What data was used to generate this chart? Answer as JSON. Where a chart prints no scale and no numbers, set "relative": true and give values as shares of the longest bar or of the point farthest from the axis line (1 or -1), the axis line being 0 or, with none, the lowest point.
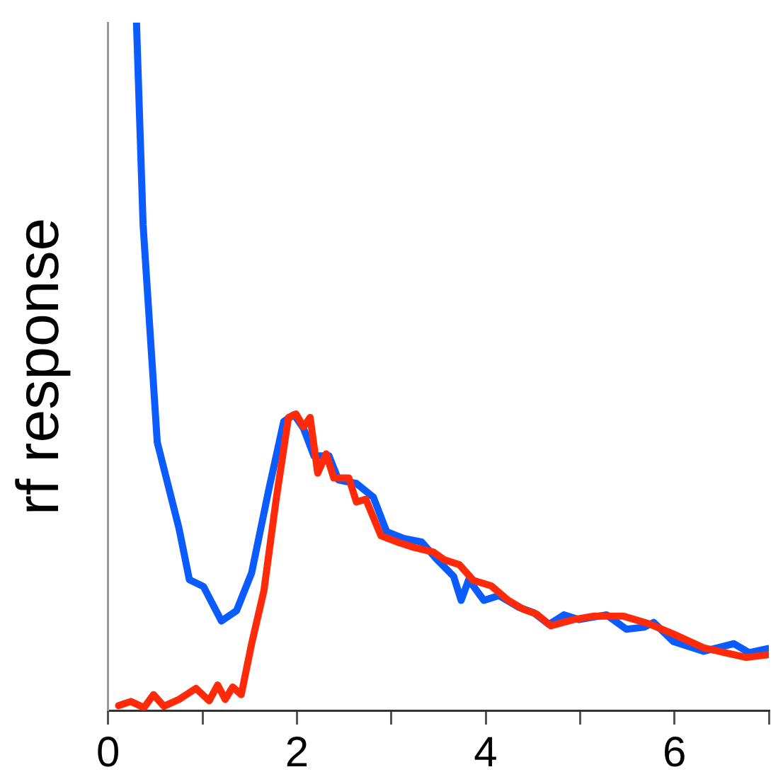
{
  "chart_data": {
    "type": "line",
    "ylabel": "rf response",
    "relative": true,
    "xlim": [
      0,
      7
    ],
    "xticks": [
      0,
      {
        "value": 1,
        "label": null
      },
      2,
      {
        "value": 3,
        "label": null
      },
      4,
      {
        "value": 5,
        "label": null
      },
      6,
      {
        "value": 7,
        "label": null
      }
    ],
    "grid": false,
    "legend": false,
    "marker": "none",
    "line_style": "solid",
    "series": [
      {
        "color": "#0a5cff",
        "x": [
          0.3,
          0.37,
          0.52,
          0.75,
          0.86,
          1.01,
          1.2,
          1.36,
          1.52,
          1.7,
          1.86,
          1.97,
          2.07,
          2.18,
          2.34,
          2.44,
          2.63,
          2.81,
          2.95,
          3.13,
          3.32,
          3.48,
          3.66,
          3.74,
          3.82,
          3.98,
          4.14,
          4.35,
          4.51,
          4.67,
          4.83,
          4.99,
          5.28,
          5.49,
          5.68,
          5.78,
          5.99,
          6.31,
          6.63,
          6.79,
          6.99
        ],
        "values": [
          1.0,
          0.706,
          0.39,
          0.265,
          0.19,
          0.18,
          0.13,
          0.145,
          0.2,
          0.32,
          0.42,
          0.43,
          0.41,
          0.37,
          0.37,
          0.335,
          0.33,
          0.31,
          0.26,
          0.25,
          0.245,
          0.22,
          0.195,
          0.16,
          0.19,
          0.16,
          0.167,
          0.15,
          0.142,
          0.125,
          0.139,
          0.132,
          0.139,
          0.118,
          0.121,
          0.128,
          0.1,
          0.086,
          0.097,
          0.084,
          0.09
        ]
      },
      {
        "color": "#ff2a0a",
        "x": [
          0.11,
          0.24,
          0.38,
          0.48,
          0.59,
          0.75,
          0.93,
          1.07,
          1.16,
          1.24,
          1.32,
          1.41,
          1.52,
          1.65,
          1.78,
          1.91,
          1.99,
          2.07,
          2.14,
          2.22,
          2.31,
          2.39,
          2.55,
          2.63,
          2.73,
          2.89,
          3.08,
          3.24,
          3.45,
          3.56,
          3.72,
          3.87,
          4.06,
          4.24,
          4.4,
          4.54,
          4.69,
          4.93,
          5.14,
          5.46,
          5.73,
          5.99,
          6.31,
          6.76,
          6.99
        ],
        "values": [
          0.007,
          0.013,
          0.004,
          0.023,
          0.006,
          0.016,
          0.032,
          0.014,
          0.037,
          0.016,
          0.034,
          0.023,
          0.097,
          0.174,
          0.307,
          0.426,
          0.431,
          0.412,
          0.426,
          0.345,
          0.373,
          0.338,
          0.338,
          0.303,
          0.307,
          0.254,
          0.244,
          0.237,
          0.23,
          0.219,
          0.212,
          0.189,
          0.181,
          0.16,
          0.147,
          0.14,
          0.123,
          0.132,
          0.137,
          0.137,
          0.126,
          0.111,
          0.091,
          0.077,
          0.081
        ]
      }
    ]
  }
}
